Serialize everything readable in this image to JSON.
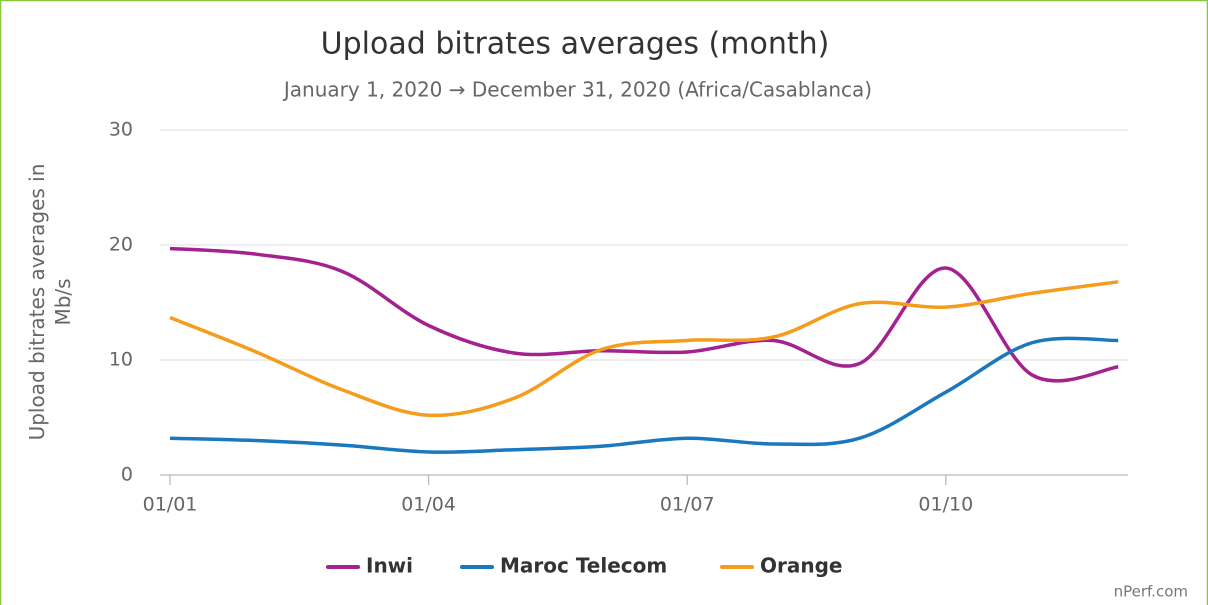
{
  "chart_data": {
    "type": "line",
    "title": "Upload bitrates averages (month)",
    "subtitle": "January 1, 2020 → December 31, 2020 (Africa/Casablanca)",
    "y_label": "Upload bitrates averages in Mb/s",
    "categories": [
      "01/01",
      null,
      null,
      "01/04",
      null,
      null,
      "01/07",
      null,
      null,
      "01/10",
      null,
      null
    ],
    "series": [
      {
        "name": "Inwi",
        "color": "#a3228f",
        "values": [
          19.7,
          19.2,
          17.7,
          13.0,
          10.6,
          10.8,
          10.7,
          11.7,
          9.7,
          18.0,
          8.7,
          9.4
        ]
      },
      {
        "name": "Maroc Telecom",
        "color": "#1a78be",
        "values": [
          3.2,
          3.0,
          2.6,
          2.0,
          2.2,
          2.5,
          3.2,
          2.7,
          3.2,
          7.2,
          11.5,
          11.7
        ]
      },
      {
        "name": "Orange",
        "color": "#f59c1a",
        "values": [
          13.7,
          10.7,
          7.4,
          5.2,
          6.7,
          10.9,
          11.7,
          12.0,
          14.9,
          14.6,
          15.8,
          16.8
        ]
      }
    ],
    "ylim": [
      0,
      30
    ],
    "yticks": [
      0,
      10,
      20,
      30
    ],
    "grid": true,
    "legend": "bottom",
    "credits": "nPerf.com"
  }
}
